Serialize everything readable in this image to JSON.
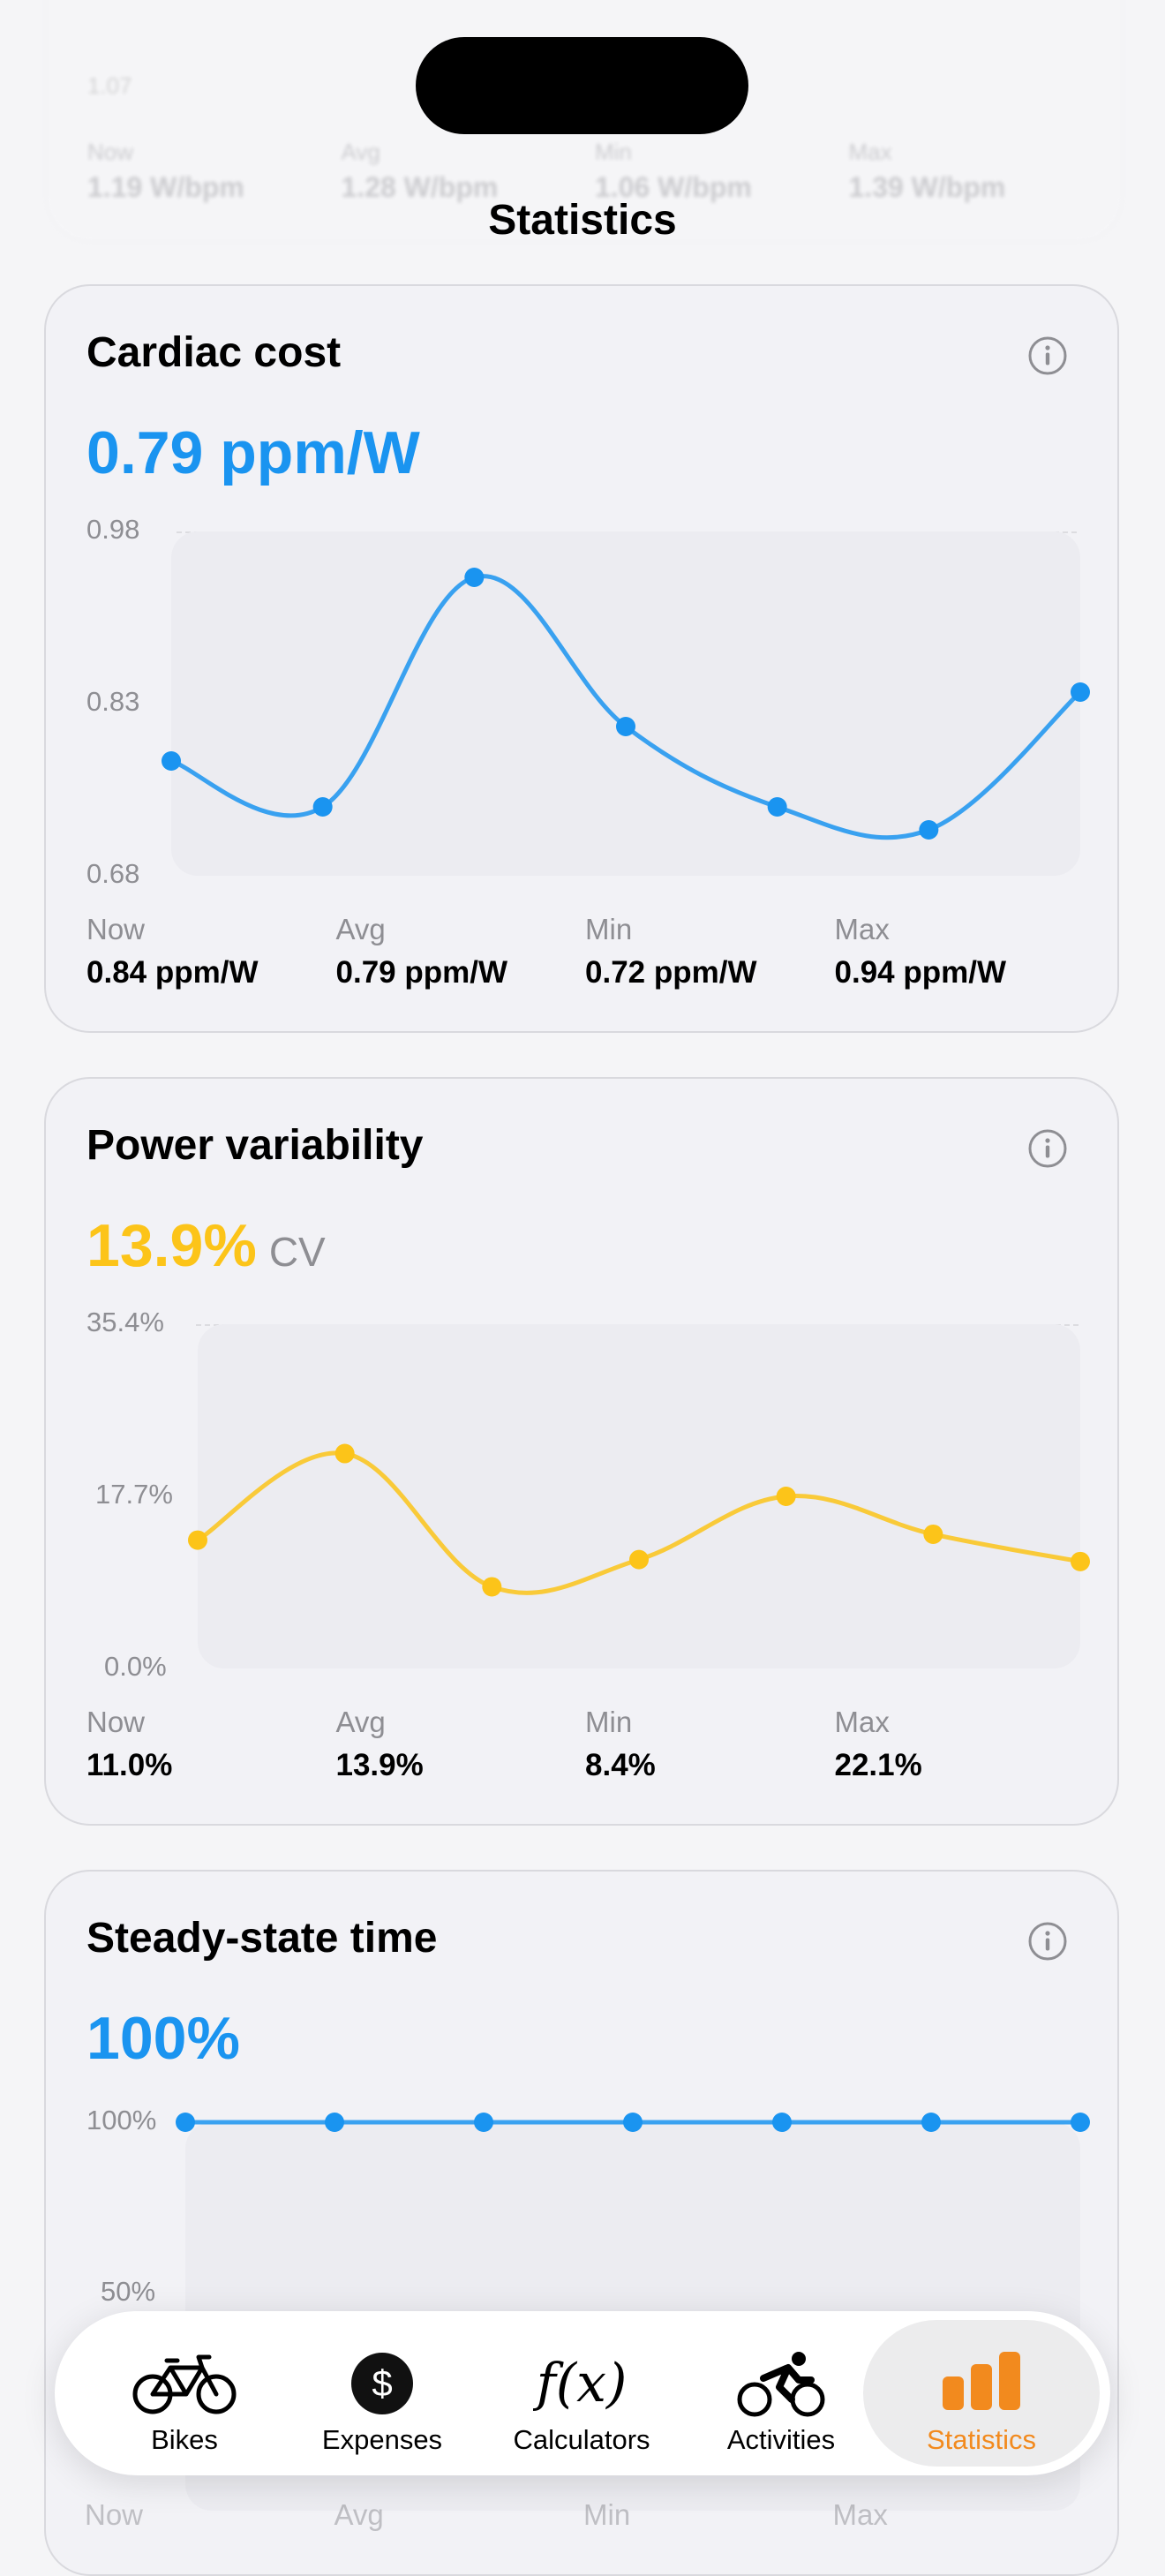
{
  "nav": {
    "title": "Statistics"
  },
  "ghost_card": {
    "tick": "1.07",
    "stats": [
      {
        "label": "Now",
        "value": "1.19 W/bpm"
      },
      {
        "label": "Avg",
        "value": "1.28 W/bpm"
      },
      {
        "label": "Min",
        "value": "1.06 W/bpm"
      },
      {
        "label": "Max",
        "value": "1.39 W/bpm"
      }
    ]
  },
  "cards": [
    {
      "title": "Cardiac cost",
      "value": "0.79 ppm/W",
      "unit": "",
      "color": "#1a94f0",
      "y_ticks": [
        "0.98",
        "0.83",
        "0.68"
      ],
      "stats": [
        {
          "label": "Now",
          "value": "0.84 ppm/W"
        },
        {
          "label": "Avg",
          "value": "0.79 ppm/W"
        },
        {
          "label": "Min",
          "value": "0.72 ppm/W"
        },
        {
          "label": "Max",
          "value": "0.94 ppm/W"
        }
      ]
    },
    {
      "title": "Power variability",
      "value": "13.9%",
      "unit": "CV",
      "color": "#fcc419",
      "y_ticks": [
        "35.4%",
        "17.7%",
        "0.0%"
      ],
      "stats": [
        {
          "label": "Now",
          "value": "11.0%"
        },
        {
          "label": "Avg",
          "value": "13.9%"
        },
        {
          "label": "Min",
          "value": "8.4%"
        },
        {
          "label": "Max",
          "value": "22.1%"
        }
      ]
    },
    {
      "title": "Steady-state time",
      "value": "100%",
      "unit": "",
      "color": "#1a94f0",
      "y_ticks": [
        "100%",
        "50%"
      ]
    }
  ],
  "peek_labels": [
    "Now",
    "Avg",
    "Min",
    "Max"
  ],
  "chart_data": [
    {
      "type": "line",
      "title": "Cardiac cost",
      "ylim": [
        0.68,
        0.98
      ],
      "series": [
        {
          "values": [
            0.78,
            0.74,
            0.94,
            0.81,
            0.74,
            0.72,
            0.84
          ]
        }
      ]
    },
    {
      "type": "line",
      "title": "Power variability",
      "ylim": [
        0.0,
        35.4
      ],
      "series": [
        {
          "values": [
            13.2,
            22.1,
            8.4,
            11.2,
            17.7,
            13.8,
            11.0
          ]
        }
      ]
    },
    {
      "type": "line",
      "title": "Steady-state time",
      "ylim": [
        50,
        100
      ],
      "series": [
        {
          "values": [
            100,
            100,
            100,
            100,
            100,
            100,
            100
          ]
        }
      ]
    }
  ],
  "tabbar": {
    "tabs": [
      {
        "label": "Bikes",
        "icon": "bike-icon"
      },
      {
        "label": "Expenses",
        "icon": "dollar-icon"
      },
      {
        "label": "Calculators",
        "icon": "function-icon"
      },
      {
        "label": "Activities",
        "icon": "cyclist-icon"
      },
      {
        "label": "Statistics",
        "icon": "bar-chart-icon",
        "active": true
      }
    ],
    "active_color": "#f28a1e"
  }
}
